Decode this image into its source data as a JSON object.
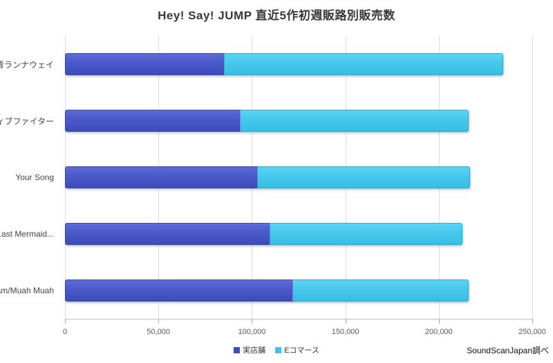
{
  "chart_data": {
    "type": "bar",
    "orientation": "horizontal",
    "stacked": true,
    "title": "Hey! Say! JUMP 直近5作初週販路別販売数",
    "categories": [
      "群青ランナウェイ",
      "ネガティブファイター",
      "Your Song",
      "Last Mermaid...",
      "I am/Muah Muah"
    ],
    "series": [
      {
        "name": "実店舗",
        "color": "#4a59c8",
        "values": [
          85500,
          94000,
          103000,
          110000,
          122000
        ]
      },
      {
        "name": "Eコマース",
        "color": "#46c8ec",
        "values": [
          149500,
          122500,
          114000,
          103000,
          94500
        ]
      }
    ],
    "totals": [
      235000,
      216500,
      217000,
      213000,
      216500
    ],
    "xlabel": "",
    "ylabel": "",
    "xlim": [
      0,
      250000
    ],
    "tick_labels": [
      "0",
      "50,000",
      "100,000",
      "150,000",
      "200,000",
      "250,000"
    ],
    "grid": "vertical",
    "legend_position": "bottom"
  },
  "footer": {
    "source": "SoundScanJapan調べ"
  }
}
